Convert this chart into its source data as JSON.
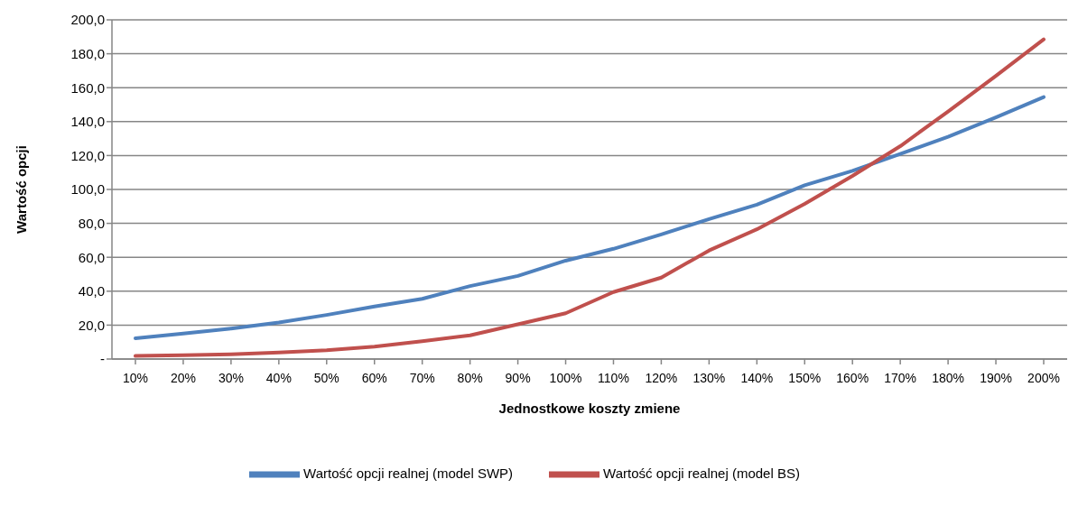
{
  "chart_data": {
    "type": "line",
    "xlabel": "Jednostkowe koszty zmiene",
    "ylabel": "Wartość opcji",
    "categories": [
      "10%",
      "20%",
      "30%",
      "40%",
      "50%",
      "60%",
      "70%",
      "80%",
      "90%",
      "100%",
      "110%",
      "120%",
      "130%",
      "140%",
      "150%",
      "160%",
      "170%",
      "180%",
      "190%",
      "200%"
    ],
    "series": [
      {
        "name": "Wartość opcji realnej (model SWP)",
        "color": "#4f81bd",
        "values": [
          12.2,
          15,
          18,
          21.5,
          26,
          31,
          35.5,
          43,
          49,
          58,
          65,
          73.5,
          82.5,
          91,
          102.5,
          111,
          121,
          131,
          142.5,
          154.5
        ]
      },
      {
        "name": "Wartość opcji realnej (model BS)",
        "color": "#c0504d",
        "values": [
          1.8,
          2.3,
          2.8,
          3.8,
          5.2,
          7.3,
          10.5,
          14,
          20.5,
          27,
          39.5,
          48,
          64,
          76.5,
          91.5,
          108,
          125.5,
          146,
          167,
          188.5
        ]
      }
    ],
    "ylim": [
      0,
      200
    ],
    "yticks": [
      {
        "value": 0,
        "label": "-"
      },
      {
        "value": 20,
        "label": "20,0"
      },
      {
        "value": 40,
        "label": "40,0"
      },
      {
        "value": 60,
        "label": "60,0"
      },
      {
        "value": 80,
        "label": "80,0"
      },
      {
        "value": 100,
        "label": "100,0"
      },
      {
        "value": 120,
        "label": "120,0"
      },
      {
        "value": 140,
        "label": "140,0"
      },
      {
        "value": 160,
        "label": "160,0"
      },
      {
        "value": 180,
        "label": "180,0"
      },
      {
        "value": 200,
        "label": "200,0"
      }
    ],
    "grid": "y",
    "legend": "bottom",
    "marker": "none",
    "line_style": "solid"
  }
}
